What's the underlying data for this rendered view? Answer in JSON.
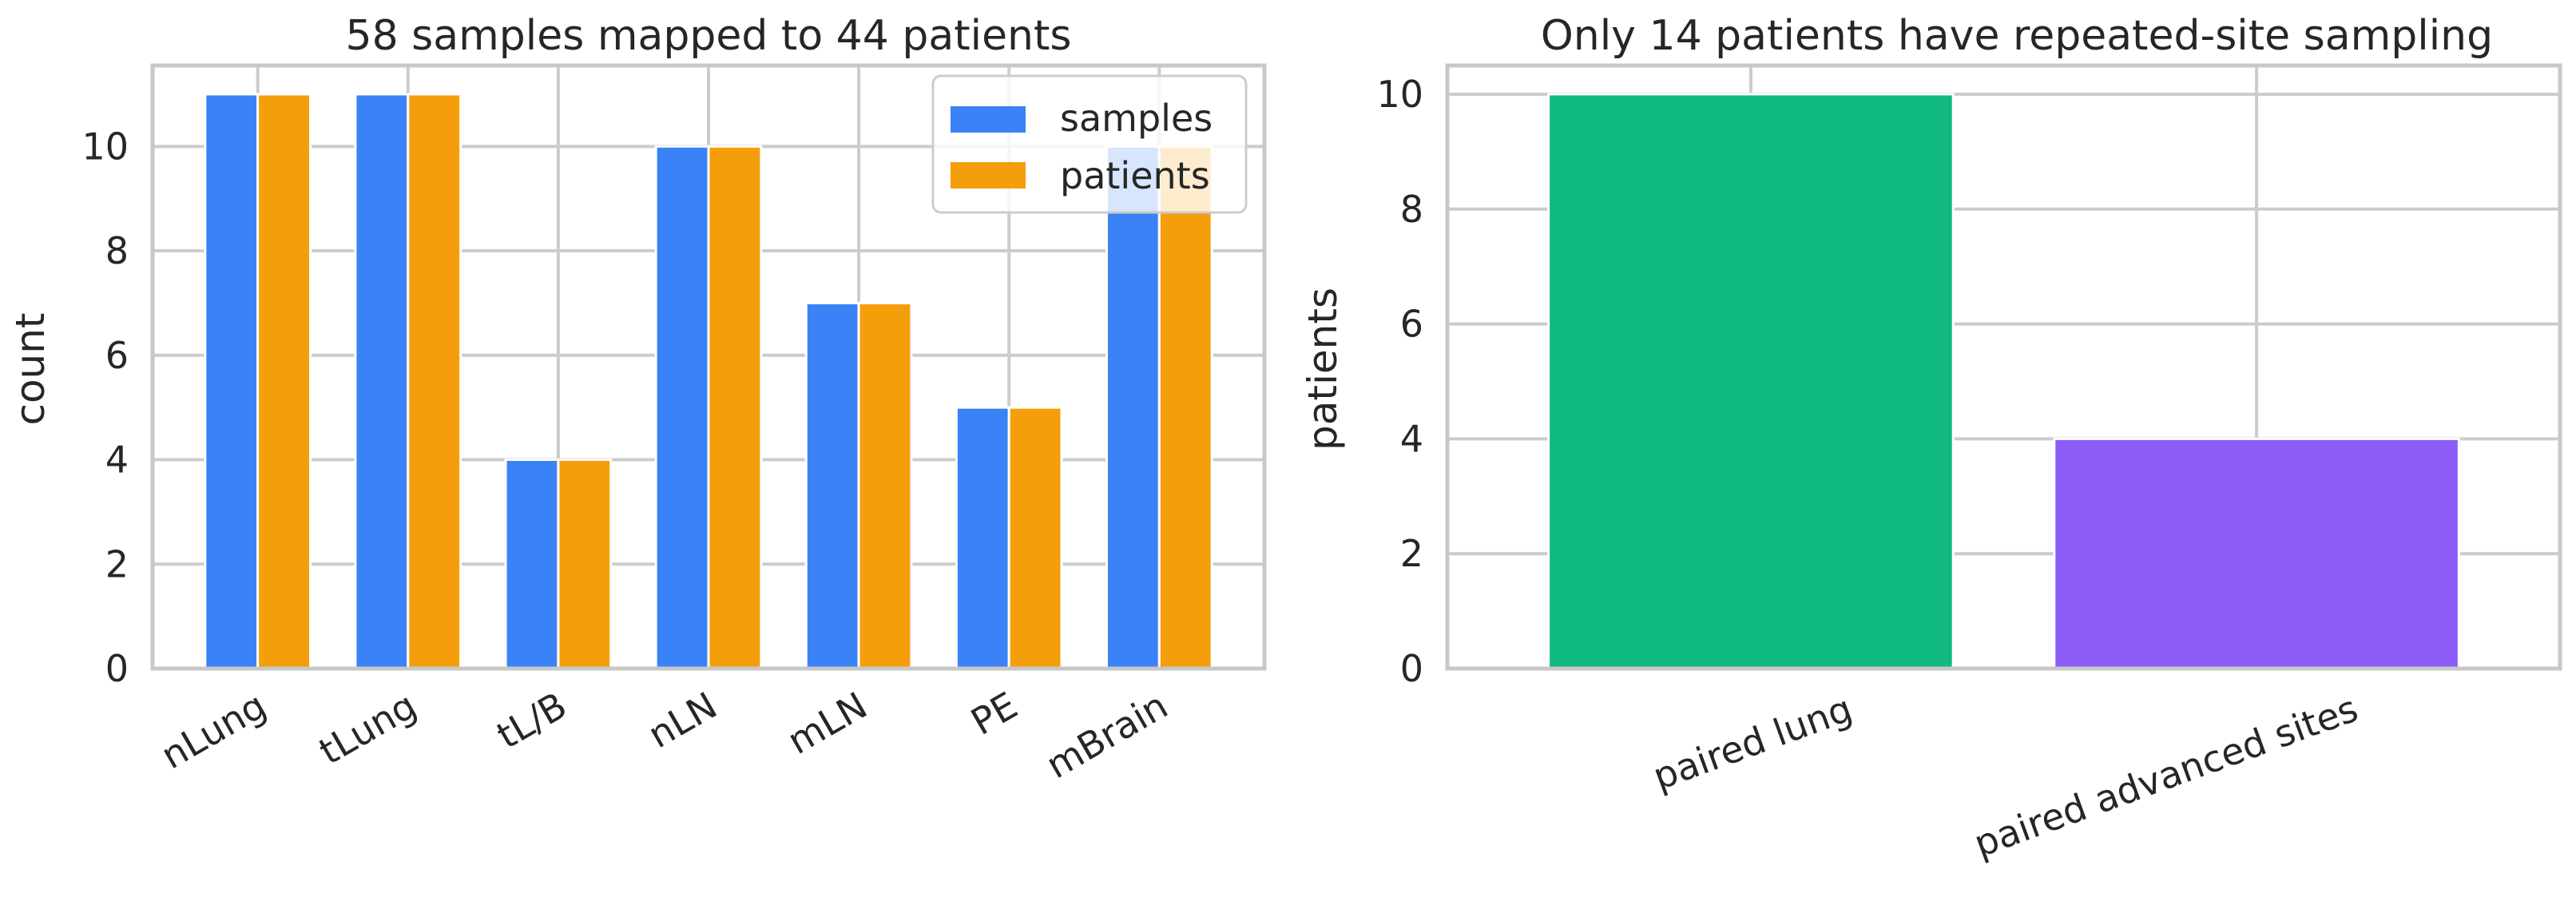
{
  "colors": {
    "samples": "#3b82f6",
    "patients": "#f59e0b",
    "paired_lung": "#10b981",
    "paired_advanced": "#8b5cf6"
  },
  "chart_data": [
    {
      "type": "bar",
      "title": "58 samples mapped to 44 patients",
      "xlabel": "",
      "ylabel": "count",
      "categories": [
        "nLung",
        "tLung",
        "tL/B",
        "nLN",
        "mLN",
        "PE",
        "mBrain"
      ],
      "series": [
        {
          "name": "samples",
          "values": [
            11,
            11,
            4,
            10,
            7,
            5,
            10
          ]
        },
        {
          "name": "patients",
          "values": [
            11,
            11,
            4,
            10,
            7,
            5,
            10
          ]
        }
      ],
      "ylim": [
        0,
        11.55
      ],
      "yticks": [
        0,
        2,
        4,
        6,
        8,
        10
      ],
      "grid": true,
      "legend": "top-right"
    },
    {
      "type": "bar",
      "title": "Only 14 patients have repeated-site sampling",
      "xlabel": "",
      "ylabel": "patients",
      "categories": [
        "paired lung",
        "paired advanced sites"
      ],
      "values": [
        10,
        4
      ],
      "ylim": [
        0,
        10.5
      ],
      "yticks": [
        0,
        2,
        4,
        6,
        8,
        10
      ],
      "grid": true
    }
  ]
}
